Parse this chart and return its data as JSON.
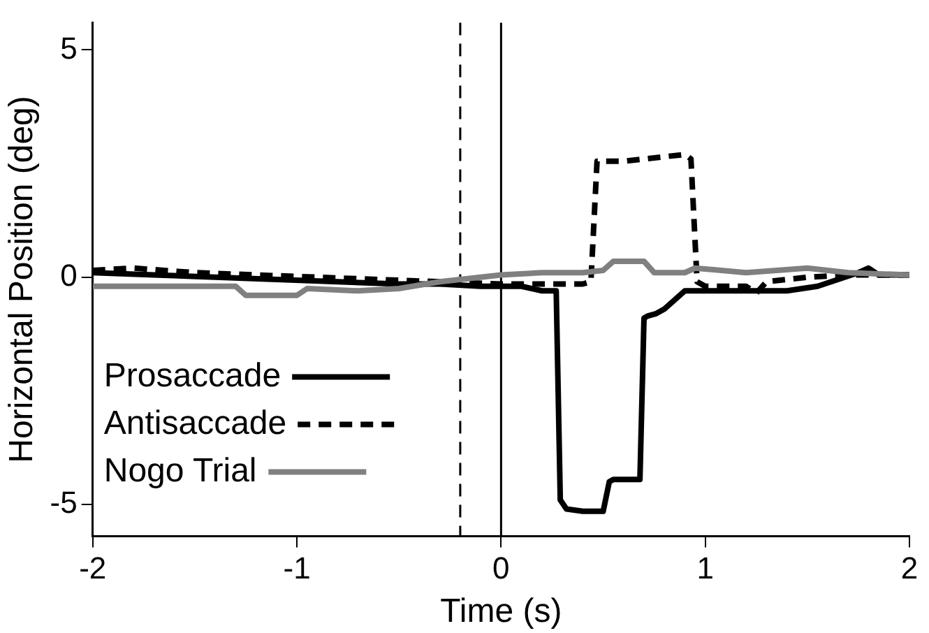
{
  "chart_data": {
    "type": "line",
    "xlabel": "Time (s)",
    "ylabel": "Horizontal Position (deg)",
    "xlim": [
      -2,
      2
    ],
    "xticks": [
      -2,
      -1,
      0,
      1,
      2
    ],
    "ylim": [
      -5.7,
      5.6
    ],
    "yticks": [
      -5,
      0,
      5
    ],
    "grid": false,
    "legend": "bottom left",
    "marker": "none",
    "ref_lines": [
      {
        "axis": "x",
        "value": -0.2,
        "color": "#000000",
        "line_style": "dashed"
      },
      {
        "axis": "x",
        "value": 0,
        "color": "#000000",
        "line_style": "solid"
      }
    ],
    "series": [
      {
        "name": "Prosaccade",
        "color": "#000000",
        "line_style": "solid",
        "x": [
          -2,
          -1.7,
          -1.4,
          -1.1,
          -0.8,
          -0.5,
          -0.3,
          -0.1,
          0,
          0.1,
          0.2,
          0.27,
          0.29,
          0.32,
          0.4,
          0.5,
          0.53,
          0.55,
          0.68,
          0.7,
          0.72,
          0.76,
          0.8,
          0.85,
          0.9,
          0.95,
          1.0,
          1.2,
          1.4,
          1.55,
          1.65,
          1.75,
          1.8,
          1.85,
          2
        ],
        "values": [
          0.1,
          0.05,
          0,
          -0.05,
          -0.1,
          -0.15,
          -0.15,
          -0.2,
          -0.2,
          -0.2,
          -0.3,
          -0.3,
          -4.9,
          -5.1,
          -5.15,
          -5.15,
          -4.5,
          -4.45,
          -4.45,
          -0.9,
          -0.85,
          -0.8,
          -0.7,
          -0.5,
          -0.3,
          -0.3,
          -0.3,
          -0.3,
          -0.3,
          -0.2,
          -0.05,
          0.1,
          0.2,
          0.05,
          0.05
        ]
      },
      {
        "name": "Antisaccade",
        "color": "#000000",
        "line_style": "dashed",
        "x": [
          -2,
          -1.8,
          -1.5,
          -1.2,
          -0.9,
          -0.6,
          -0.3,
          0,
          0.2,
          0.4,
          0.44,
          0.47,
          0.6,
          0.9,
          0.93,
          0.96,
          1.0,
          1.2,
          1.25,
          1.3,
          1.5,
          1.7,
          2
        ],
        "values": [
          0.15,
          0.2,
          0.1,
          0.05,
          0,
          -0.05,
          -0.1,
          -0.15,
          -0.15,
          -0.15,
          -0.1,
          2.55,
          2.55,
          2.7,
          2.6,
          -0.1,
          -0.2,
          -0.2,
          -0.35,
          -0.1,
          0,
          0.05,
          0.05
        ]
      },
      {
        "name": "Nogo Trial",
        "color": "#808080",
        "line_style": "solid",
        "x": [
          -2,
          -1.6,
          -1.3,
          -1.25,
          -1.0,
          -0.95,
          -0.7,
          -0.5,
          -0.3,
          0,
          0.2,
          0.4,
          0.5,
          0.55,
          0.7,
          0.75,
          0.9,
          0.95,
          1.2,
          1.5,
          1.7,
          2
        ],
        "values": [
          -0.2,
          -0.2,
          -0.2,
          -0.4,
          -0.4,
          -0.25,
          -0.3,
          -0.25,
          -0.1,
          0.05,
          0.1,
          0.1,
          0.15,
          0.35,
          0.35,
          0.1,
          0.1,
          0.2,
          0.1,
          0.2,
          0.1,
          0.05
        ]
      }
    ]
  }
}
